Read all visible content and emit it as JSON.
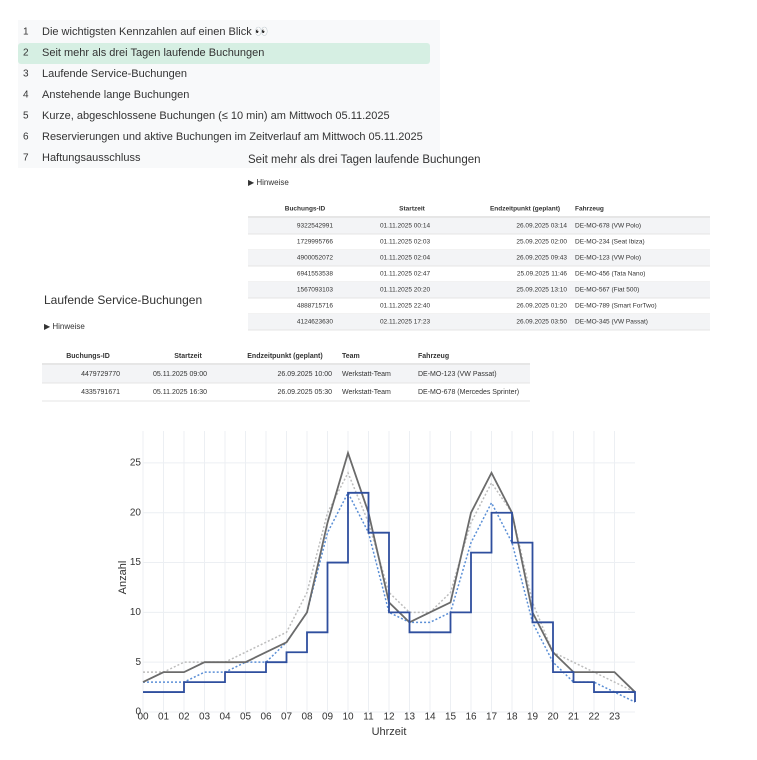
{
  "toc": {
    "active": 1,
    "items": [
      {
        "num": "1",
        "text": "Die wichtigsten Kennzahlen auf einen Blick 👀"
      },
      {
        "num": "2",
        "text": "Seit mehr als drei Tagen laufende Buchungen"
      },
      {
        "num": "3",
        "text": "Laufende Service-Buchungen"
      },
      {
        "num": "4",
        "text": "Anstehende lange Buchungen"
      },
      {
        "num": "5",
        "text": "Kurze, abgeschlossene Buchungen (≤ 10 min) am Mittwoch 05.11.2025"
      },
      {
        "num": "6",
        "text": "Reservierungen und aktive Buchungen im Zeitverlauf am Mittwoch 05.11.2025"
      },
      {
        "num": "7",
        "text": "Haftungsausschluss"
      }
    ]
  },
  "section1": {
    "title": "Seit mehr als drei Tagen laufende Buchungen",
    "hint": "▶ Hinweise",
    "table": {
      "headers": [
        "Buchungs-ID",
        "Startzeit",
        "Endzeitpunkt (geplant)",
        "Fahrzeug"
      ],
      "rows": [
        [
          "9322542991",
          "01.11.2025 00:14",
          "26.09.2025 03:14",
          "DE-MO-678 (VW Polo)"
        ],
        [
          "1729995766",
          "01.11.2025 02:03",
          "25.09.2025 02:00",
          "DE-MO-234 (Seat Ibiza)"
        ],
        [
          "4900052072",
          "01.11.2025 02:04",
          "26.09.2025 09:43",
          "DE-MO-123 (VW Polo)"
        ],
        [
          "6941553538",
          "01.11.2025 02:47",
          "25.09.2025 11:46",
          "DE-MO-456 (Tata Nano)"
        ],
        [
          "1567093103",
          "01.11.2025 20:20",
          "25.09.2025 13:10",
          "DE-MO-567 (Fiat 500)"
        ],
        [
          "4888715716",
          "01.11.2025 22:40",
          "26.09.2025 01:20",
          "DE-MO-789 (Smart ForTwo)"
        ],
        [
          "4124623630",
          "02.11.2025 17:23",
          "26.09.2025 03:50",
          "DE-MO-345 (VW Passat)"
        ]
      ]
    }
  },
  "section2": {
    "title": "Laufende Service-Buchungen",
    "hint": "▶ Hinweise",
    "table": {
      "headers": [
        "Buchungs-ID",
        "Startzeit",
        "Endzeitpunkt (geplant)",
        "Team",
        "Fahrzeug"
      ],
      "rows": [
        [
          "4479729770",
          "05.11.2025 09:00",
          "26.09.2025 10:00",
          "Werkstatt-Team",
          "DE-MO-123 (VW Passat)"
        ],
        [
          "4335791671",
          "05.11.2025 16:30",
          "26.09.2025 05:30",
          "Werkstatt-Team",
          "DE-MO-678 (Mercedes Sprinter)"
        ]
      ]
    }
  },
  "chart_data": {
    "type": "line",
    "x_label": "Uhrzeit",
    "y_label": "Anzahl",
    "x": [
      0,
      1,
      2,
      3,
      4,
      5,
      6,
      7,
      8,
      9,
      10,
      11,
      12,
      13,
      14,
      15,
      16,
      17,
      18,
      19,
      20,
      21,
      22,
      23,
      24
    ],
    "series": [
      {
        "color": "#bdbdbd",
        "dash": "dotted",
        "values": [
          4,
          4,
          5,
          5,
          5,
          6,
          7,
          8,
          12,
          20,
          24,
          19,
          12,
          10,
          10,
          12,
          19,
          23,
          20,
          11,
          6,
          5,
          4,
          3,
          2
        ]
      },
      {
        "color": "#5b8fd6",
        "dash": "dotted",
        "values": [
          3,
          3,
          3,
          4,
          4,
          5,
          5,
          7,
          10,
          18,
          22,
          18,
          10,
          9,
          9,
          10,
          17,
          21,
          17,
          9,
          5,
          3,
          3,
          2,
          1
        ]
      },
      {
        "color": "#6b6b6b",
        "dash": "solid",
        "values": [
          3,
          4,
          4,
          5,
          5,
          5,
          6,
          7,
          10,
          19,
          26,
          20,
          11,
          9,
          10,
          11,
          20,
          24,
          20,
          10,
          6,
          4,
          4,
          4,
          2
        ]
      },
      {
        "color": "#2f4f9e",
        "dash": "solid",
        "step": true,
        "values": [
          2,
          2,
          3,
          3,
          4,
          4,
          5,
          6,
          8,
          15,
          22,
          18,
          10,
          8,
          8,
          10,
          16,
          20,
          17,
          9,
          4,
          3,
          2,
          2,
          1
        ]
      }
    ],
    "xlim": [
      0,
      24
    ],
    "ylim": [
      0,
      27
    ],
    "xticks": [
      {
        "value": 0,
        "label": "00"
      },
      {
        "value": 1,
        "label": "01"
      },
      {
        "value": 2,
        "label": "02"
      },
      {
        "value": 3,
        "label": "03"
      },
      {
        "value": 4,
        "label": "04"
      },
      {
        "value": 5,
        "label": "05"
      },
      {
        "value": 6,
        "label": "06"
      },
      {
        "value": 7,
        "label": "07"
      },
      {
        "value": 8,
        "label": "08"
      },
      {
        "value": 9,
        "label": "09"
      },
      10,
      11,
      12,
      13,
      14,
      15,
      16,
      17,
      18,
      19,
      20,
      21,
      22,
      23
    ],
    "yticks": [
      0,
      5,
      10,
      15,
      20,
      25
    ],
    "grid": true
  }
}
